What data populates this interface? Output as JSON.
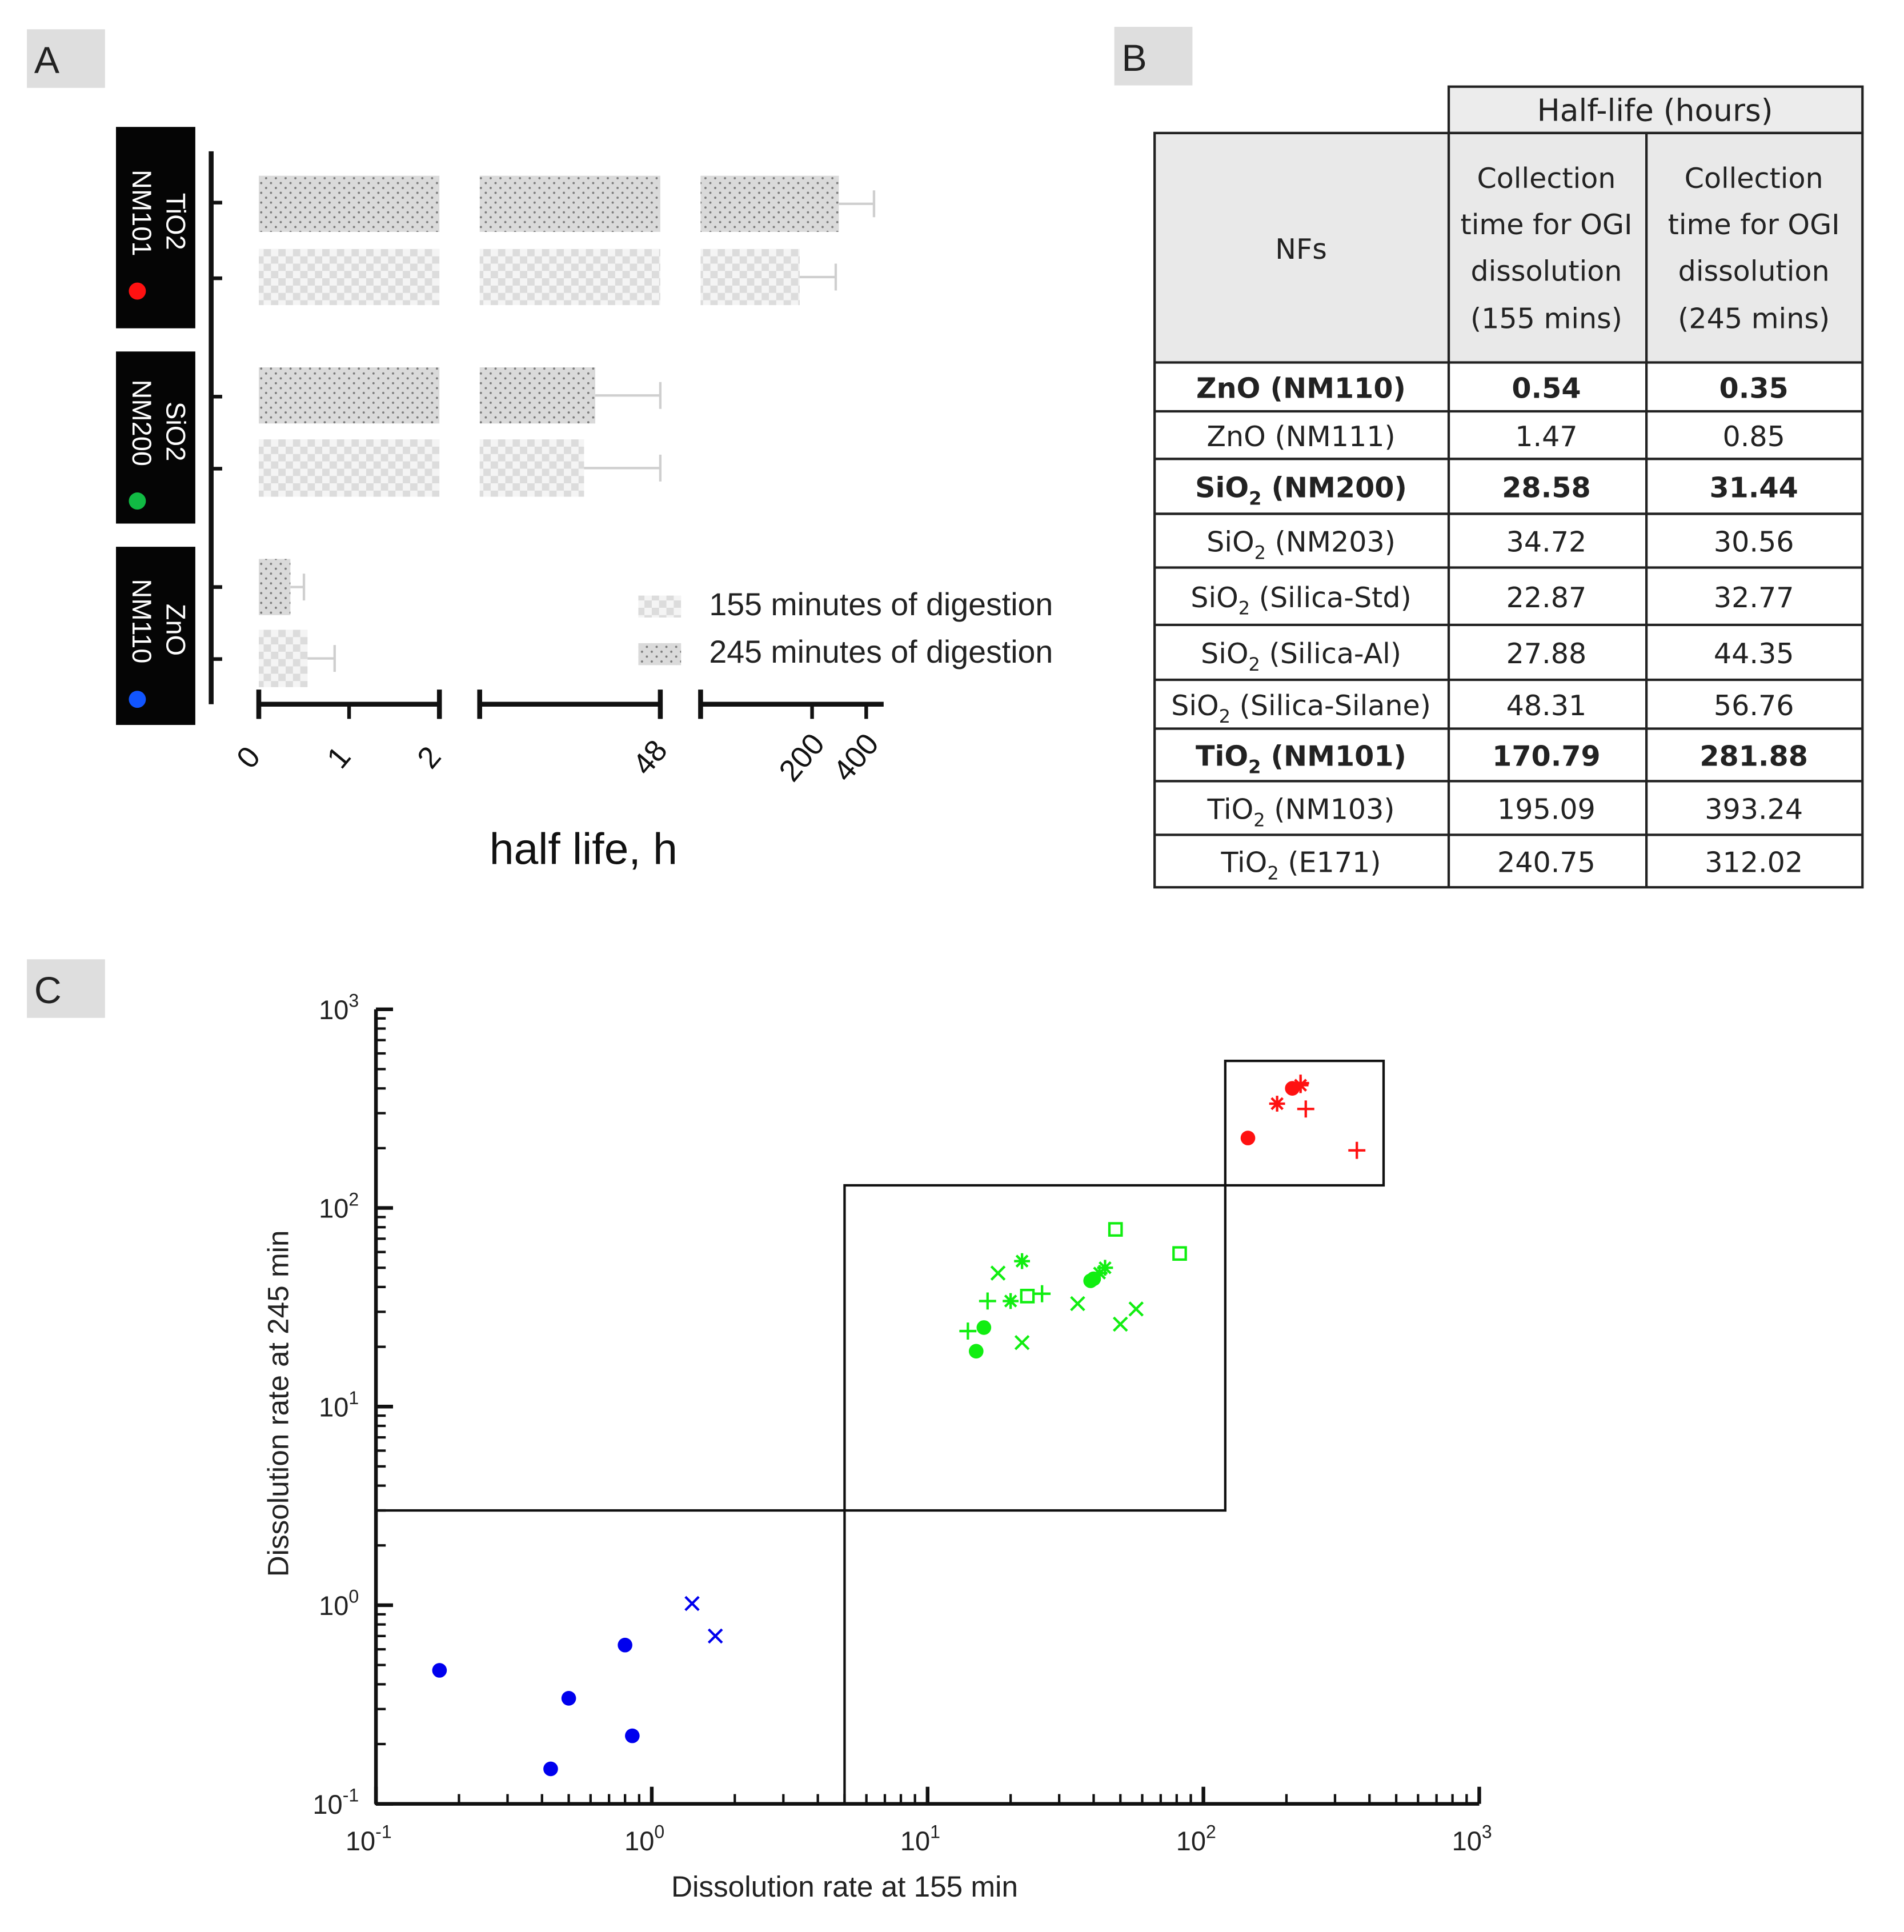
{
  "panels": {
    "A": "A",
    "B": "B",
    "C": "C"
  },
  "colors": {
    "ZnO": "#1155ff",
    "SiO2": "#11bb44",
    "TiO2": "#ff1111",
    "scatter_blue": "#0000ee",
    "scatter_green": "#11ee11",
    "scatter_red": "#ff1111"
  },
  "chart_data": [
    {
      "type": "bar",
      "orientation": "horizontal",
      "xlabel": "half life, h",
      "axis_segments": [
        {
          "ticks": [
            0,
            1,
            2
          ],
          "range": [
            0,
            2
          ]
        },
        {
          "ticks": [
            48
          ],
          "range": [
            2,
            48
          ]
        },
        {
          "ticks": [
            200,
            400
          ],
          "range": [
            48,
            500
          ]
        }
      ],
      "categories": [
        {
          "line1": "TiO2",
          "line2": "NM101",
          "color": "#ff1111"
        },
        {
          "line1": "SiO2",
          "line2": "NM200",
          "color": "#11bb44"
        },
        {
          "line1": "ZnO",
          "line2": "NM110",
          "color": "#1155ff"
        }
      ],
      "series": [
        {
          "name": "245 minutes of digestion",
          "pattern": "dots",
          "values": [
            281.88,
            31.44,
            0.35
          ],
          "errors": [
            160,
            18,
            0.15
          ]
        },
        {
          "name": "155 minutes of digestion",
          "pattern": "checker",
          "values": [
            170.79,
            28.58,
            0.54
          ],
          "errors": [
            100,
            20,
            0.3
          ]
        }
      ],
      "legend": [
        {
          "label": "155 minutes of digestion",
          "pattern": "checker"
        },
        {
          "label": "245 minutes of digestion",
          "pattern": "dots"
        }
      ],
      "legend_position": "bottom-right"
    },
    {
      "type": "table",
      "group_header": "Half-life (hours)",
      "col_nfs": "NFs",
      "col1": [
        "Collection",
        "time for OGI",
        "dissolution",
        "(155 mins)"
      ],
      "col2": [
        "Collection",
        "time for OGI",
        "dissolution",
        "(245 mins)"
      ],
      "rows": [
        {
          "base": "ZnO",
          "sub": "",
          "rest": " (NM110)",
          "v155": "0.54",
          "v245": "0.35",
          "bold": true
        },
        {
          "base": "ZnO",
          "sub": "",
          "rest": " (NM111)",
          "v155": "1.47",
          "v245": "0.85",
          "bold": false
        },
        {
          "base": "SiO",
          "sub": "2",
          "rest": " (NM200)",
          "v155": "28.58",
          "v245": "31.44",
          "bold": true
        },
        {
          "base": "SiO",
          "sub": "2",
          "rest": " (NM203)",
          "v155": "34.72",
          "v245": "30.56",
          "bold": false
        },
        {
          "base": "SiO",
          "sub": "2",
          "rest": " (Silica-Std)",
          "v155": "22.87",
          "v245": "32.77",
          "bold": false
        },
        {
          "base": "SiO",
          "sub": "2",
          "rest": " (Silica-Al)",
          "v155": "27.88",
          "v245": "44.35",
          "bold": false
        },
        {
          "base": "SiO",
          "sub": "2",
          "rest": " (Silica-Silane)",
          "v155": "48.31",
          "v245": "56.76",
          "bold": false
        },
        {
          "base": "TiO",
          "sub": "2",
          "rest": " (NM101)",
          "v155": "170.79",
          "v245": "281.88",
          "bold": true
        },
        {
          "base": "TiO",
          "sub": "2",
          "rest": " (NM103)",
          "v155": "195.09",
          "v245": "393.24",
          "bold": false
        },
        {
          "base": "TiO",
          "sub": "2",
          "rest": " (E171)",
          "v155": "240.75",
          "v245": "312.02",
          "bold": false
        }
      ]
    },
    {
      "type": "scatter",
      "xscale": "log",
      "yscale": "log",
      "xlabel": "Dissolution rate at 155 min",
      "ylabel": "Dissolution rate at 245 min",
      "xlim": [
        0.1,
        1000
      ],
      "ylim": [
        0.1,
        1000
      ],
      "tick_base": "10",
      "tick_exponents": [
        "-1",
        "0",
        "1",
        "2",
        "3"
      ],
      "regions": [
        {
          "x": [
            0.1,
            5
          ],
          "y": [
            0.1,
            3
          ]
        },
        {
          "x": [
            5,
            120
          ],
          "y": [
            3,
            130
          ]
        },
        {
          "x": [
            120,
            450
          ],
          "y": [
            130,
            550
          ]
        }
      ],
      "series": [
        {
          "name": "blue-dot",
          "marker": "dot",
          "color": "#0000ee",
          "points": [
            [
              0.17,
              0.47
            ],
            [
              0.5,
              0.34
            ],
            [
              0.8,
              0.63
            ],
            [
              0.85,
              0.22
            ],
            [
              0.43,
              0.15
            ]
          ]
        },
        {
          "name": "blue-cross",
          "marker": "x",
          "color": "#0000ee",
          "points": [
            [
              1.4,
              1.02
            ],
            [
              1.7,
              0.7
            ]
          ]
        },
        {
          "name": "green-dot",
          "marker": "dot",
          "color": "#11ee11",
          "points": [
            [
              16,
              25
            ],
            [
              15,
              19
            ],
            [
              39,
              43
            ],
            [
              40,
              44
            ]
          ]
        },
        {
          "name": "green-plus",
          "marker": "plus",
          "color": "#11ee11",
          "points": [
            [
              14,
              24
            ],
            [
              16.5,
              34
            ],
            [
              26,
              37
            ]
          ]
        },
        {
          "name": "green-cross",
          "marker": "x",
          "color": "#11ee11",
          "points": [
            [
              18,
              47
            ],
            [
              22,
              21
            ],
            [
              35,
              33
            ],
            [
              50,
              26
            ],
            [
              57,
              31
            ]
          ]
        },
        {
          "name": "green-star",
          "marker": "star",
          "color": "#11ee11",
          "points": [
            [
              22,
              54
            ],
            [
              20,
              34
            ],
            [
              44,
              50
            ],
            [
              42,
              47
            ]
          ]
        },
        {
          "name": "green-square",
          "marker": "square",
          "color": "#11ee11",
          "points": [
            [
              48,
              78
            ],
            [
              82,
              59
            ],
            [
              23,
              36
            ]
          ]
        },
        {
          "name": "red-dot",
          "marker": "dot",
          "color": "#ff1111",
          "points": [
            [
              145,
              225
            ],
            [
              210,
              400
            ]
          ]
        },
        {
          "name": "red-plus",
          "marker": "plus",
          "color": "#ff1111",
          "points": [
            [
              235,
              315
            ],
            [
              360,
              195
            ],
            [
              225,
              425
            ]
          ]
        },
        {
          "name": "red-star",
          "marker": "star",
          "color": "#ff1111",
          "points": [
            [
              185,
              335
            ],
            [
              225,
              415
            ]
          ]
        }
      ]
    }
  ]
}
